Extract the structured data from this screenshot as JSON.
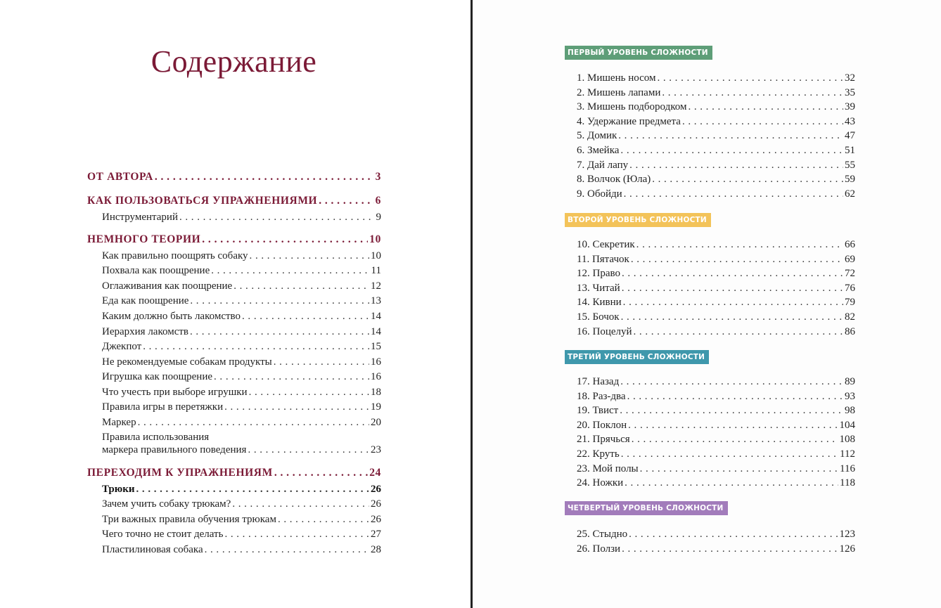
{
  "left_page": {
    "title": "Содержание",
    "sections": [
      {
        "title": "ОТ АВТОРА",
        "page": "3",
        "items": []
      },
      {
        "title": "КАК ПОЛЬЗОВАТЬСЯ УПРАЖНЕНИЯМИ",
        "page": "6",
        "items": [
          {
            "title": "Инструментарий",
            "page": "9"
          }
        ]
      },
      {
        "title": "НЕМНОГО ТЕОРИИ",
        "page": "10",
        "items": [
          {
            "title": "Как правильно поощрять собаку",
            "page": "10"
          },
          {
            "title": "Похвала как поощрение",
            "page": "11"
          },
          {
            "title": "Оглаживания как поощрение",
            "page": "12"
          },
          {
            "title": "Еда как поощрение",
            "page": "13"
          },
          {
            "title": "Каким должно быть лакомство",
            "page": "14"
          },
          {
            "title": "Иерархия лакомств",
            "page": "14"
          },
          {
            "title": "Джекпот",
            "page": "15"
          },
          {
            "title": "Не рекомендуемые собакам продукты",
            "page": "16"
          },
          {
            "title": "Игрушка как поощрение",
            "page": "16"
          },
          {
            "title": "Что учесть при выборе игрушки",
            "page": "18"
          },
          {
            "title": "Правила игры в перетяжки",
            "page": "19"
          },
          {
            "title": "Маркер",
            "page": "20"
          },
          {
            "title_line1": "Правила использования",
            "title": "маркера правильного поведения",
            "page": "23"
          }
        ]
      },
      {
        "title": "ПЕРЕХОДИМ К УПРАЖНЕНИЯМ",
        "page": "24",
        "items": [
          {
            "title": "Трюки",
            "page": "26",
            "bold": true
          },
          {
            "title": "Зачем учить собаку трюкам?",
            "page": "26"
          },
          {
            "title": "Три важных правила обучения трюкам",
            "page": "26"
          },
          {
            "title": "Чего точно не стоит делать",
            "page": "27"
          },
          {
            "title": "Пластилиновая собака",
            "page": "28"
          }
        ]
      }
    ]
  },
  "right_page": {
    "levels": [
      {
        "label": "ПЕРВЫЙ УРОВЕНЬ СЛОЖНОСТИ",
        "color": "#5e9e78",
        "items": [
          {
            "title": "1. Мишень носом",
            "page": "32"
          },
          {
            "title": "2. Мишень лапами",
            "page": "35"
          },
          {
            "title": "3. Мишень подбородком",
            "page": "39"
          },
          {
            "title": "4. Удержание предмета",
            "page": "43"
          },
          {
            "title": "5. Домик",
            "page": "47"
          },
          {
            "title": "6. Змейка",
            "page": "51"
          },
          {
            "title": "7. Дай лапу",
            "page": "55"
          },
          {
            "title": "8. Волчок (Юла)",
            "page": "59"
          },
          {
            "title": "9. Обойди",
            "page": "62"
          }
        ]
      },
      {
        "label": "ВТОРОЙ УРОВЕНЬ СЛОЖНОСТИ",
        "color": "#f3c35a",
        "items": [
          {
            "title": "10. Секретик",
            "page": "66"
          },
          {
            "title": "11. Пятачок",
            "page": "69"
          },
          {
            "title": "12. Право",
            "page": "72"
          },
          {
            "title": "13. Читай",
            "page": "76"
          },
          {
            "title": "14. Кивни",
            "page": "79"
          },
          {
            "title": "15. Бочок",
            "page": "82"
          },
          {
            "title": "16. Поцелуй",
            "page": "86"
          }
        ]
      },
      {
        "label": "ТРЕТИЙ УРОВЕНЬ СЛОЖНОСТИ",
        "color": "#3f98ac",
        "items": [
          {
            "title": "17. Назад",
            "page": "89"
          },
          {
            "title": "18. Раз-два",
            "page": "93"
          },
          {
            "title": "19. Твист",
            "page": "98"
          },
          {
            "title": "20. Поклон",
            "page": "104"
          },
          {
            "title": "21. Прячься",
            "page": "108"
          },
          {
            "title": "22. Круть",
            "page": "112"
          },
          {
            "title": "23. Мой полы",
            "page": "116"
          },
          {
            "title": "24. Ножки",
            "page": "118"
          }
        ]
      },
      {
        "label": "ЧЕТВЕРТЫЙ УРОВЕНЬ СЛОЖНОСТИ",
        "color": "#a27cbb",
        "items": [
          {
            "title": "25. Стыдно",
            "page": "123"
          },
          {
            "title": "26. Ползи",
            "page": "126"
          }
        ]
      }
    ]
  }
}
